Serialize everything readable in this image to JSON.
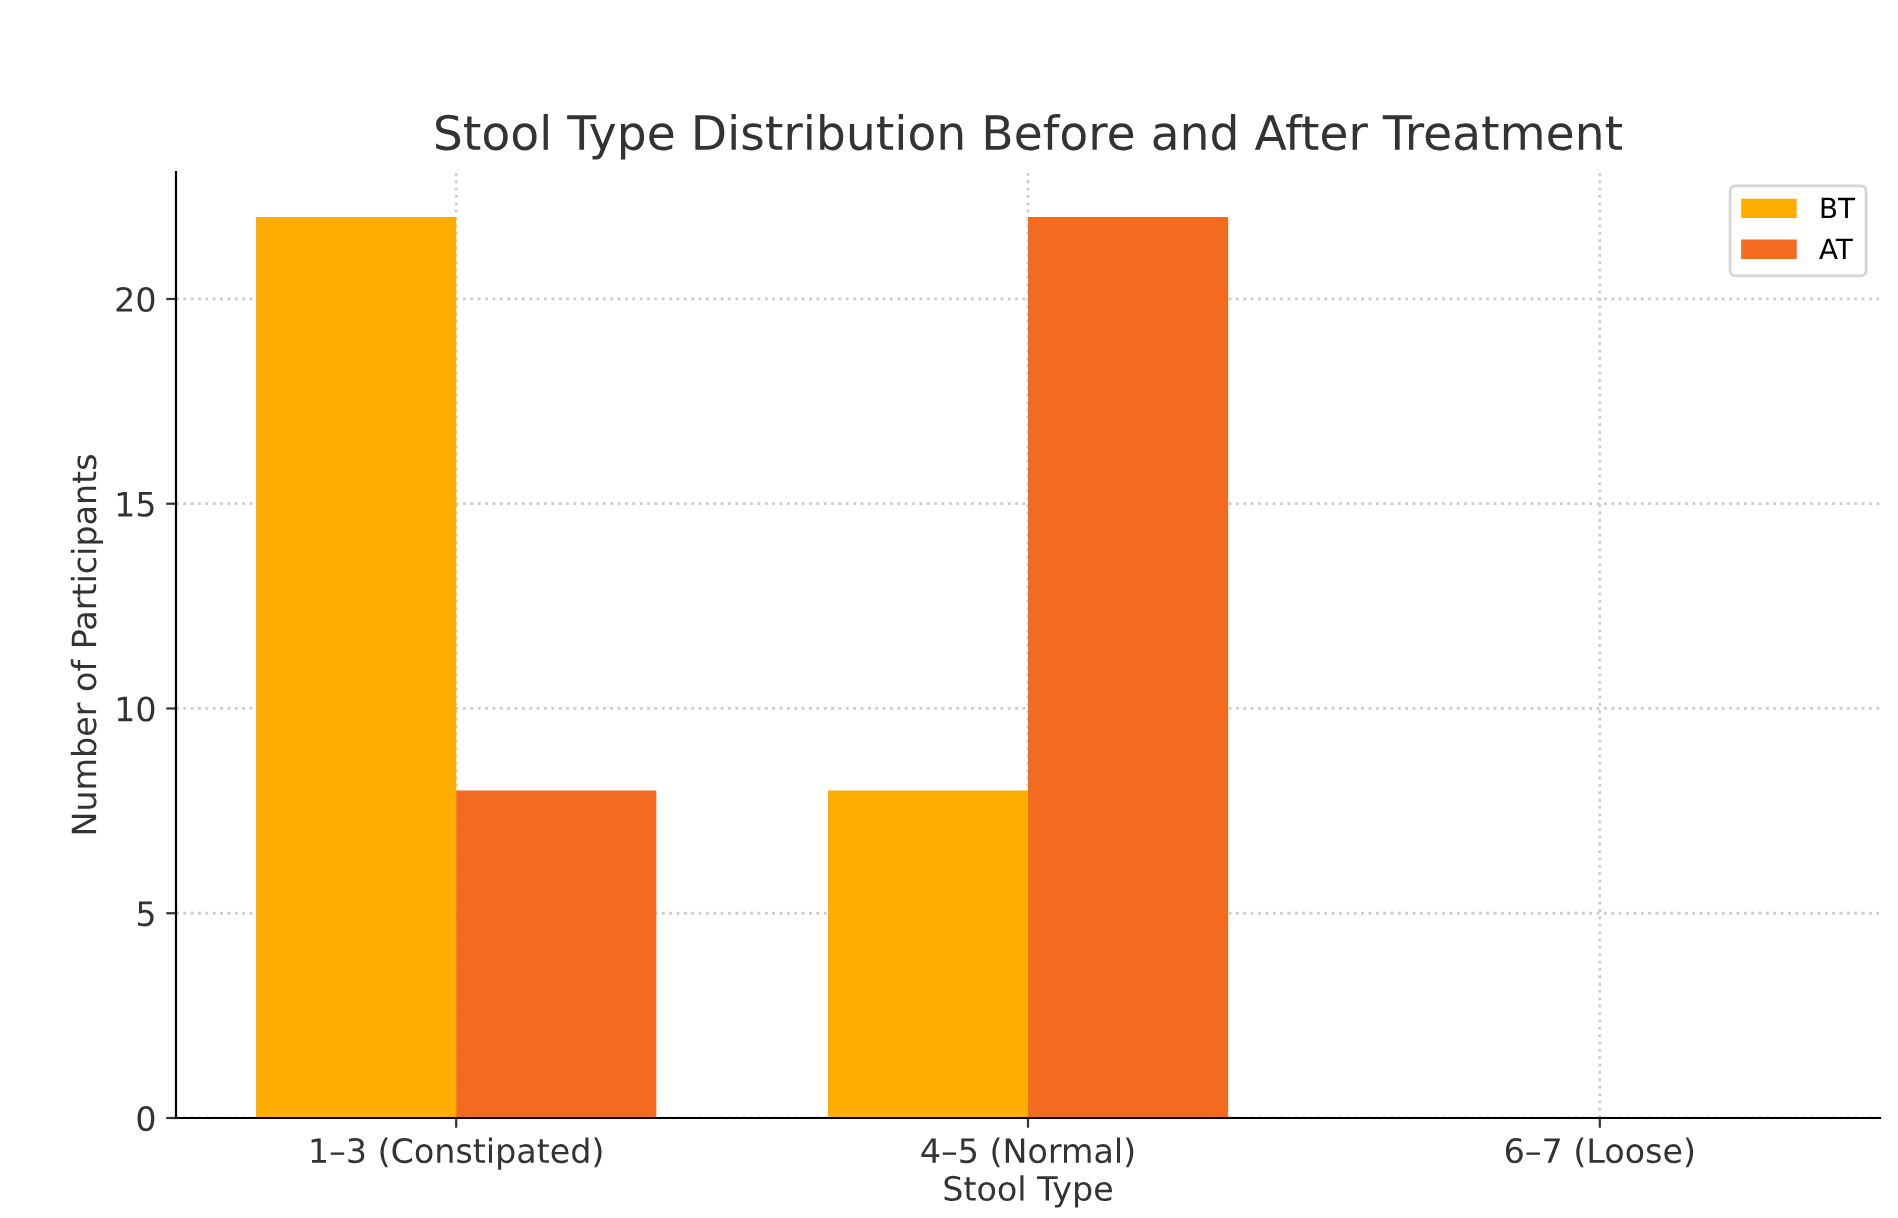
{
  "chart_data": {
    "type": "bar",
    "title": "Stool Type Distribution Before and After Treatment",
    "xlabel": "Stool Type",
    "ylabel": "Number of Participants",
    "categories": [
      "1–3 (Constipated)",
      "4–5 (Normal)",
      "6–7 (Loose)"
    ],
    "series": [
      {
        "name": "BT",
        "color": "#ffad00",
        "values": [
          22,
          8,
          0
        ]
      },
      {
        "name": "AT",
        "color": "#f26b21",
        "values": [
          8,
          22,
          0
        ]
      }
    ],
    "ylim": [
      0,
      23.1
    ],
    "yticks": [
      0,
      5,
      10,
      15,
      20
    ],
    "grid": true,
    "legend": "top right"
  }
}
